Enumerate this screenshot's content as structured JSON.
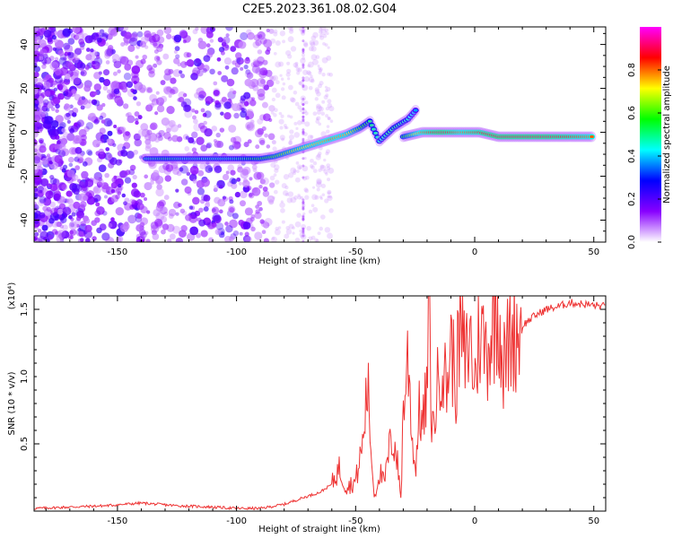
{
  "title": "C2E5.2023.361.08.02.G04",
  "chart_data": [
    {
      "type": "heatmap",
      "xlabel": "Height of straight line (km)",
      "ylabel": "Frequency (Hz)",
      "xlim": [
        -185,
        55
      ],
      "ylim": [
        -50,
        48
      ],
      "x_ticks": [
        "-150",
        "-100",
        "-50",
        "0",
        "50"
      ],
      "y_ticks": [
        "-40",
        "-20",
        "0",
        "20",
        "40"
      ],
      "colorbar": {
        "label": "Normalized spectral amplitude",
        "range": [
          0,
          1
        ],
        "ticks": [
          "0.0",
          "0.2",
          "0.4",
          "0.6",
          "0.8"
        ],
        "colors": [
          "#ffffff",
          "#8800ff",
          "#0000ff",
          "#00ffff",
          "#00ff00",
          "#ffff00",
          "#ff0000",
          "#ff00ff"
        ]
      },
      "ridge": [
        {
          "x": -138,
          "y": -12,
          "v": 0.45
        },
        {
          "x": -130,
          "y": -12,
          "v": 0.5
        },
        {
          "x": -122,
          "y": -12,
          "v": 0.45
        },
        {
          "x": -114,
          "y": -12,
          "v": 0.45
        },
        {
          "x": -102,
          "y": -12,
          "v": 0.45
        },
        {
          "x": -96,
          "y": -12,
          "v": 0.5
        },
        {
          "x": -90,
          "y": -12,
          "v": 0.55
        },
        {
          "x": -84,
          "y": -11,
          "v": 0.6
        },
        {
          "x": -78,
          "y": -9,
          "v": 0.65
        },
        {
          "x": -72,
          "y": -7,
          "v": 0.7
        },
        {
          "x": -66,
          "y": -5,
          "v": 0.75
        },
        {
          "x": -60,
          "y": -3,
          "v": 0.8
        },
        {
          "x": -54,
          "y": -1,
          "v": 0.75
        },
        {
          "x": -48,
          "y": 2,
          "v": 0.6
        },
        {
          "x": -44,
          "y": 5,
          "v": 0.5
        },
        {
          "x": -40,
          "y": -4,
          "v": 0.45
        },
        {
          "x": -34,
          "y": 2,
          "v": 0.5
        },
        {
          "x": -28,
          "y": 6,
          "v": 0.45
        },
        {
          "x": -24,
          "y": 11,
          "v": 0.35
        },
        {
          "x": -30,
          "y": -2,
          "v": 0.55
        },
        {
          "x": -22,
          "y": 0,
          "v": 0.8
        },
        {
          "x": -14,
          "y": 0,
          "v": 0.9
        },
        {
          "x": -6,
          "y": 0,
          "v": 0.8
        },
        {
          "x": 2,
          "y": 0,
          "v": 0.85
        },
        {
          "x": 10,
          "y": -2,
          "v": 0.9
        },
        {
          "x": 20,
          "y": -2,
          "v": 0.9
        },
        {
          "x": 30,
          "y": -2,
          "v": 0.9
        },
        {
          "x": 40,
          "y": -2,
          "v": 0.85
        },
        {
          "x": 50,
          "y": -2,
          "v": 0.8
        }
      ]
    },
    {
      "type": "line",
      "xlabel": "Height of straight line (km)",
      "ylabel": "SNR (10 * v/v)",
      "y_multiplier": "(x10⁴)",
      "xlim": [
        -185,
        55
      ],
      "ylim": [
        0,
        1.6
      ],
      "x_ticks": [
        "-150",
        "-100",
        "-50",
        "0",
        "50"
      ],
      "y_ticks": [
        "0.5",
        "1.0",
        "1.5"
      ],
      "color": "#ee3333",
      "series": [
        {
          "x": [
            -185,
            -170,
            -155,
            -140,
            -125,
            -110,
            -100,
            -90,
            -80,
            -72,
            -65,
            -60,
            -57,
            -54,
            -50,
            -47,
            -45,
            -43,
            -42,
            -40,
            -38,
            -35,
            -33,
            -31,
            -30,
            -28,
            -26,
            -25,
            -23,
            -22,
            -20,
            -19,
            -18,
            -16,
            -14,
            -12,
            -10,
            -8,
            -6,
            -4,
            -2,
            0,
            2,
            5,
            8,
            10,
            12,
            15,
            20,
            25,
            30,
            35,
            40,
            45,
            50,
            55
          ],
          "y": [
            0.02,
            0.03,
            0.04,
            0.06,
            0.04,
            0.03,
            0.02,
            0.02,
            0.05,
            0.1,
            0.14,
            0.2,
            0.32,
            0.18,
            0.22,
            0.5,
            0.95,
            0.3,
            0.1,
            0.3,
            0.2,
            0.55,
            0.45,
            0.1,
            0.75,
            1.15,
            0.5,
            0.3,
            0.8,
            0.6,
            0.9,
            1.58,
            0.55,
            0.85,
            1.2,
            0.9,
            1.25,
            0.95,
            1.35,
            1.1,
            1.3,
            0.95,
            1.35,
            1.2,
            1.4,
            1.55,
            1.05,
            1.3,
            1.38,
            1.45,
            1.5,
            1.52,
            1.55,
            1.54,
            1.53,
            1.52
          ]
        }
      ]
    }
  ]
}
